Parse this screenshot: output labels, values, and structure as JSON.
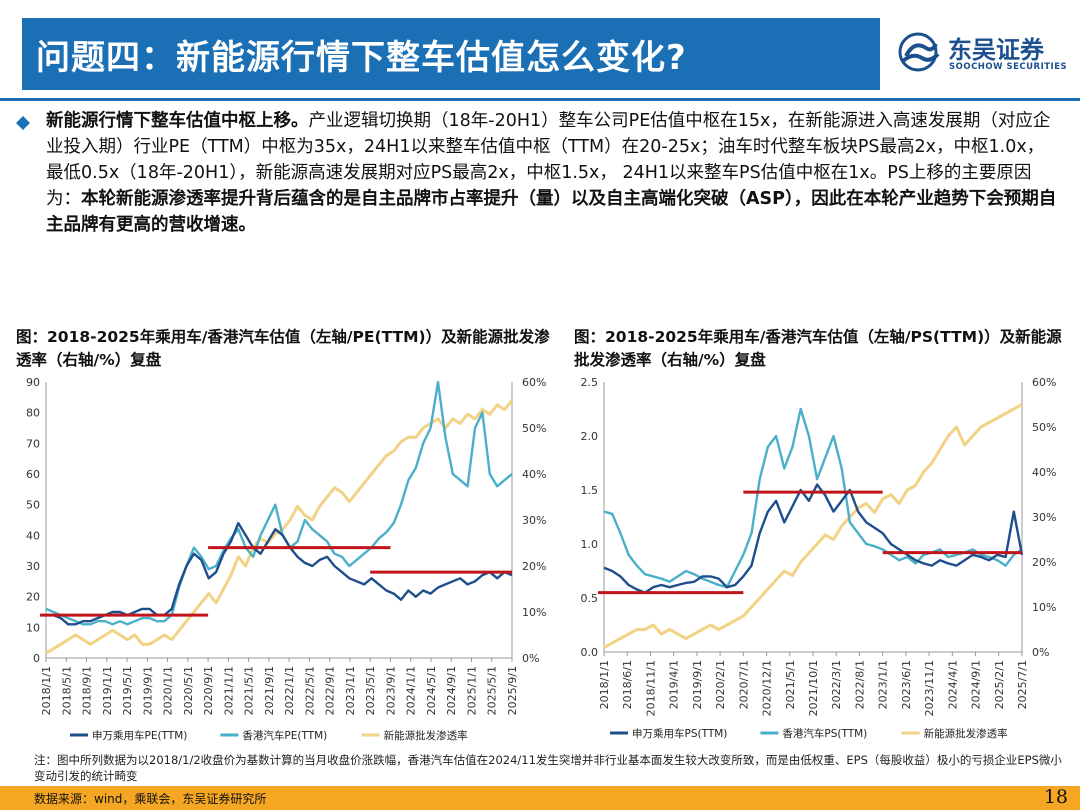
{
  "header": {
    "title": "问题四：新能源行情下整车估值怎么变化?"
  },
  "logo": {
    "name_cn": "东吴证券",
    "name_en": "SOOCHOW SECURITIES"
  },
  "body": {
    "lead": "新能源行情下整车估值中枢上移。",
    "text1": "产业逻辑切换期（18年-20H1）整车公司PE估值中枢在15x，在新能源进入高速发展期（对应企业投入期）行业PE（TTM）中枢为35x，24H1以来整车估值中枢（TTM）在20-25x；油车时代整车板块PS最高2x，中枢1.0x，最低0.5x（18年-20H1），新能源高速发展期对应PS最高2x，中枢1.5x， 24H1以来整车PS估值中枢在1x。PS上移的主要原因为：",
    "bold2": "本轮新能源渗透率提升背后蕴含的是自主品牌市占率提升（量）以及自主高端化突破（ASP），因此在本轮产业趋势下会预期自主品牌有更高的营收增速。"
  },
  "figures": {
    "left_title": "图：2018-2025年乘用车/香港汽车估值（左轴/PE(TTM)）及新能源批发渗透率（右轴/%）复盘",
    "right_title": "图：2018-2025年乘用车/香港汽车估值（左轴/PS(TTM)）及新能源批发渗透率（右轴/%）复盘"
  },
  "colors": {
    "dark_blue": "#1f4e8c",
    "teal": "#4aafc9",
    "yellow": "#f2d285",
    "red": "#c0151b",
    "title_bg": "#1b6fb5",
    "footer_bg": "#f5a623"
  },
  "chart_data": [
    {
      "type": "line",
      "title": "图：2018-2025年乘用车/香港汽车估值（左轴/PE(TTM)）及新能源批发渗透率（右轴/%）复盘",
      "x_labels": [
        "2018/1/1",
        "2018/5/1",
        "2018/9/1",
        "2019/1/1",
        "2019/5/1",
        "2019/9/1",
        "2020/1/1",
        "2020/5/1",
        "2020/9/1",
        "2021/1/1",
        "2021/5/1",
        "2021/9/1",
        "2022/1/1",
        "2022/5/1",
        "2022/9/1",
        "2023/1/1",
        "2023/5/1",
        "2023/9/1",
        "2024/1/1",
        "2024/5/1",
        "2024/9/1",
        "2025/1/1",
        "2025/5/1",
        "2025/9/1"
      ],
      "y_left": {
        "min": 0,
        "max": 90,
        "ticks": [
          "0",
          "10",
          "20",
          "30",
          "40",
          "50",
          "60",
          "70",
          "80",
          "90"
        ]
      },
      "y_right": {
        "min": 0,
        "max": 60,
        "ticks": [
          "0%",
          "10%",
          "20%",
          "30%",
          "40%",
          "50%",
          "60%"
        ]
      },
      "series": [
        {
          "name": "申万乘用车PE(TTM)",
          "axis": "left",
          "color": "#1f4e8c",
          "values": [
            14,
            14,
            13,
            11,
            11,
            12,
            12,
            13,
            14,
            15,
            15,
            14,
            15,
            16,
            16,
            14,
            14,
            16,
            24,
            30,
            34,
            32,
            26,
            28,
            34,
            38,
            44,
            40,
            36,
            34,
            38,
            42,
            40,
            36,
            33,
            31,
            30,
            32,
            33,
            30,
            28,
            26,
            25,
            24,
            26,
            24,
            22,
            21,
            19,
            22,
            20,
            22,
            21,
            23,
            24,
            25,
            26,
            24,
            25,
            27,
            28,
            26,
            28,
            27
          ]
        },
        {
          "name": "香港汽车PE(TTM)",
          "axis": "left",
          "color": "#4aafc9",
          "values": [
            16,
            15,
            14,
            13,
            12,
            11,
            11,
            12,
            12,
            11,
            12,
            11,
            12,
            13,
            13,
            12,
            12,
            14,
            23,
            30,
            36,
            33,
            29,
            30,
            35,
            39,
            42,
            36,
            33,
            40,
            45,
            50,
            40,
            36,
            38,
            45,
            42,
            40,
            38,
            34,
            33,
            30,
            32,
            34,
            36,
            39,
            41,
            44,
            50,
            58,
            62,
            70,
            75,
            90,
            72,
            60,
            58,
            56,
            75,
            80,
            60,
            56,
            58,
            60
          ]
        },
        {
          "name": "新能源批发渗透率",
          "axis": "right",
          "color": "#f2d285",
          "values": [
            1,
            2,
            3,
            4,
            5,
            4,
            3,
            4,
            5,
            6,
            5,
            4,
            5,
            3,
            3,
            4,
            5,
            4,
            6,
            8,
            10,
            12,
            14,
            12,
            15,
            18,
            22,
            20,
            24,
            26,
            25,
            27,
            28,
            30,
            33,
            31,
            30,
            33,
            35,
            37,
            36,
            34,
            36,
            38,
            40,
            42,
            44,
            45,
            47,
            48,
            48,
            50,
            51,
            52,
            50,
            52,
            51,
            53,
            52,
            54,
            53,
            55,
            54,
            56
          ]
        }
      ],
      "reference_lines": [
        {
          "value": 14,
          "from": "2018/1/1",
          "to": "2020/9/1"
        },
        {
          "value": 36,
          "from": "2020/9/1",
          "to": "2023/9/1"
        },
        {
          "value": 28,
          "from": "2023/5/1",
          "to": "2025/9/1"
        }
      ],
      "legend": [
        "申万乘用车PE(TTM)",
        "香港汽车PE(TTM)",
        "新能源批发渗透率"
      ]
    },
    {
      "type": "line",
      "title": "图：2018-2025年乘用车/香港汽车估值（左轴/PS(TTM)）及新能源批发渗透率（右轴/%）复盘",
      "x_labels": [
        "2018/1/1",
        "2018/6/1",
        "2018/11/1",
        "2019/4/1",
        "2019/9/1",
        "2020/2/1",
        "2020/7/1",
        "2020/12/1",
        "2021/5/1",
        "2021/10/1",
        "2022/3/1",
        "2022/8/1",
        "2023/1/1",
        "2023/6/1",
        "2023/11/1",
        "2024/4/1",
        "2024/9/1",
        "2025/2/1",
        "2025/7/1"
      ],
      "y_left": {
        "min": 0,
        "max": 2.5,
        "ticks": [
          "0.0",
          "0.5",
          "1.0",
          "1.5",
          "2.0",
          "2.5"
        ]
      },
      "y_right": {
        "min": 0,
        "max": 60,
        "ticks": [
          "0%",
          "10%",
          "20%",
          "30%",
          "40%",
          "50%",
          "60%"
        ]
      },
      "series": [
        {
          "name": "申万乘用车PS(TTM)",
          "axis": "left",
          "color": "#1f4e8c",
          "values": [
            0.78,
            0.75,
            0.7,
            0.62,
            0.58,
            0.55,
            0.6,
            0.62,
            0.6,
            0.62,
            0.64,
            0.65,
            0.7,
            0.7,
            0.68,
            0.6,
            0.62,
            0.7,
            0.8,
            1.1,
            1.3,
            1.4,
            1.2,
            1.35,
            1.5,
            1.4,
            1.55,
            1.45,
            1.3,
            1.4,
            1.5,
            1.3,
            1.2,
            1.15,
            1.1,
            1.0,
            0.95,
            0.9,
            0.85,
            0.82,
            0.8,
            0.85,
            0.82,
            0.8,
            0.85,
            0.9,
            0.88,
            0.85,
            0.9,
            0.88,
            1.3,
            0.9
          ]
        },
        {
          "name": "香港汽车PS(TTM)",
          "axis": "left",
          "color": "#4aafc9",
          "values": [
            1.3,
            1.28,
            1.1,
            0.9,
            0.8,
            0.72,
            0.7,
            0.68,
            0.65,
            0.7,
            0.75,
            0.72,
            0.68,
            0.65,
            0.62,
            0.6,
            0.75,
            0.9,
            1.1,
            1.6,
            1.9,
            2.0,
            1.7,
            1.9,
            2.25,
            2.0,
            1.6,
            1.8,
            2.0,
            1.7,
            1.2,
            1.1,
            1.0,
            0.98,
            0.95,
            0.9,
            0.85,
            0.88,
            0.82,
            0.9,
            0.92,
            0.95,
            0.88,
            0.9,
            0.92,
            0.95,
            0.9,
            0.88,
            0.85,
            0.8,
            0.9,
            0.95
          ]
        },
        {
          "name": "新能源批发渗透率",
          "axis": "right",
          "color": "#f2d285",
          "values": [
            1,
            2,
            3,
            4,
            5,
            5,
            6,
            4,
            5,
            4,
            3,
            4,
            5,
            6,
            5,
            6,
            7,
            8,
            10,
            12,
            14,
            16,
            18,
            17,
            20,
            22,
            24,
            26,
            25,
            28,
            30,
            32,
            33,
            31,
            34,
            35,
            33,
            36,
            37,
            40,
            42,
            45,
            48,
            50,
            46,
            48,
            50,
            51,
            52,
            53,
            54,
            55
          ]
        }
      ],
      "reference_lines": [
        {
          "value": 0.55,
          "from": "2018/1/1",
          "to": "2020/7/1"
        },
        {
          "value": 1.48,
          "from": "2020/7/1",
          "to": "2023/1/1"
        },
        {
          "value": 0.92,
          "from": "2023/1/1",
          "to": "2025/7/1"
        }
      ],
      "legend": [
        "申万乘用车PS(TTM)",
        "香港汽车PS(TTM)",
        "新能源批发渗透率"
      ]
    }
  ],
  "note": "注：图中所列数据为以2018/1/2收盘价为基数计算的当月收盘价涨跌幅，香港汽车估值在2024/11发生突增并非行业基本面发生较大改变所致，而是由低权重、EPS（每股收益）极小的亏损企业EPS微小变动引发的统计畸变",
  "footer": {
    "source": "数据来源：wind，乘联会，东吴证券研究所",
    "page": "18"
  }
}
